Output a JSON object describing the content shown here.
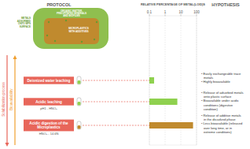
{
  "headers": {
    "protocol": "PROTOCOL",
    "chart": "RELATIVE PERCENTAGE OF METAL(LOID)S",
    "hypothesis": "HYPOTHESIS"
  },
  "particle_labels": {
    "organic": [
      "ORGANIC MATTER,",
      "PRECIPITATED MINERALS",
      "AND BIOFILMS"
    ],
    "microplastics": [
      "MICROPLASTICS",
      "WITH ADDITIVES"
    ],
    "metals": [
      "METALS",
      "ADSORBED",
      "ONTO MPS",
      "SURFACE"
    ]
  },
  "process_arrows": {
    "solubilization": "Solubilization process",
    "bioavailability": "Bioavailability"
  },
  "conditions": {
    "acidic_leaching": "pH1 - HNO₃",
    "acidic_digestion": "HNO₃ - 14.6N"
  },
  "hypotheses": [
    [
      [
        "• Easily exchangeable trace",
        "metals"
      ],
      [
        "• Highly bioavailable"
      ]
    ],
    [
      [
        "• Release of adsorbed metals",
        "onto plastic surface"
      ],
      [
        "• Bioavailable under acidic",
        "conditions (digestive",
        "condition)"
      ]
    ],
    [
      [
        "• Release of additive metals",
        "in the dissolved phase"
      ],
      [
        "• Less bioavailable (released",
        "over long time, or in",
        "extreme conditions)"
      ]
    ]
  ],
  "chart_data": {
    "type": "bar",
    "orientation": "horizontal",
    "log": "x",
    "categories": [
      "Deionized water leaching",
      "Acidic leaching",
      "Acidic digestion of the Microplastics"
    ],
    "values": [
      0.2,
      6,
      60
    ],
    "colors": [
      "#8fd14f",
      "#8fd14f",
      "#c08a2e"
    ],
    "xlim": [
      0.1,
      100
    ],
    "xticks": [
      0.1,
      1,
      10,
      100
    ],
    "grid": true
  }
}
